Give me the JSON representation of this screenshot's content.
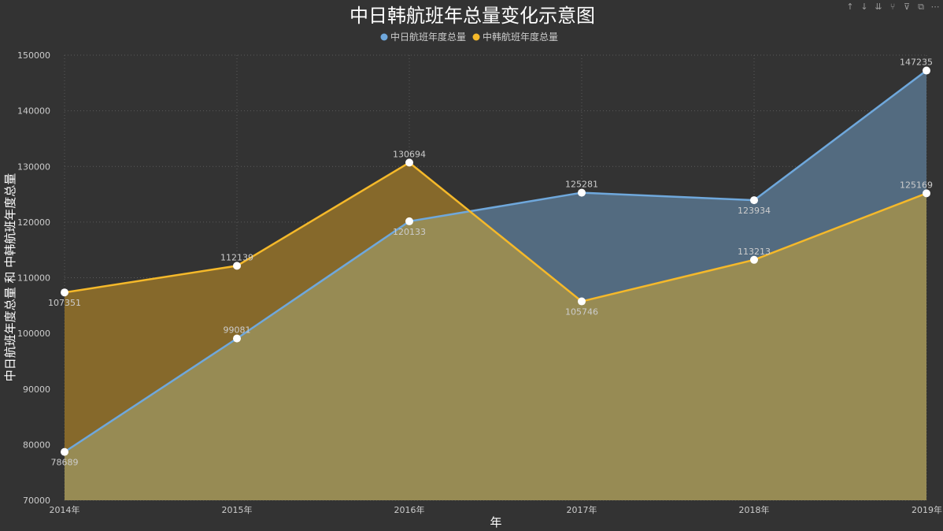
{
  "toolbar": {
    "icons": [
      "arrow-up-icon",
      "arrow-down-icon",
      "double-arrow-down-icon",
      "hierarchy-icon",
      "filter-icon",
      "focus-mode-icon",
      "more-options-icon"
    ]
  },
  "colors": {
    "background": "#333333",
    "blue": "#6fa8dc",
    "blue_fill": "#536b80",
    "orange": "#f5b92a",
    "orange_fill": "#86692b",
    "overlap_fill": "#978b54",
    "text": "#cccccc",
    "title": "#ffffff",
    "grid": "#5a5a5a",
    "point": "#ffffff"
  },
  "chart_data": {
    "type": "area",
    "title": "中日韩航班年总量变化示意图",
    "xlabel": "年",
    "ylabel": "中日航班年度总量 和 中韩航班年度总量",
    "categories": [
      "2014年",
      "2015年",
      "2016年",
      "2017年",
      "2018年",
      "2019年"
    ],
    "ylim": [
      70000,
      150000
    ],
    "yticks": [
      70000,
      80000,
      90000,
      100000,
      110000,
      120000,
      130000,
      140000,
      150000
    ],
    "grid": true,
    "legend_position": "top-center",
    "series": [
      {
        "name": "中日航班年度总量",
        "color": "#6fa8dc",
        "values": [
          78689,
          99081,
          120133,
          125281,
          123934,
          147235
        ]
      },
      {
        "name": "中韩航班年度总量",
        "color": "#f5b92a",
        "values": [
          107351,
          112139,
          130694,
          105746,
          113213,
          125169
        ]
      }
    ]
  }
}
